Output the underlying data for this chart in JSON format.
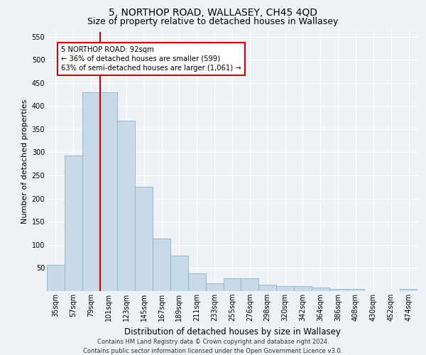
{
  "title": "5, NORTHOP ROAD, WALLASEY, CH45 4QD",
  "subtitle": "Size of property relative to detached houses in Wallasey",
  "xlabel": "Distribution of detached houses by size in Wallasey",
  "ylabel": "Number of detached properties",
  "footer_line1": "Contains HM Land Registry data © Crown copyright and database right 2024.",
  "footer_line2": "Contains public sector information licensed under the Open Government Licence v3.0.",
  "bar_labels": [
    "35sqm",
    "57sqm",
    "79sqm",
    "101sqm",
    "123sqm",
    "145sqm",
    "167sqm",
    "189sqm",
    "211sqm",
    "233sqm",
    "255sqm",
    "276sqm",
    "298sqm",
    "320sqm",
    "342sqm",
    "364sqm",
    "386sqm",
    "408sqm",
    "430sqm",
    "452sqm",
    "474sqm"
  ],
  "bar_values": [
    57,
    293,
    430,
    430,
    368,
    225,
    113,
    76,
    38,
    17,
    27,
    27,
    14,
    10,
    10,
    7,
    4,
    4,
    0,
    0,
    5
  ],
  "bar_color": "#c8d9e8",
  "bar_edge_color": "#8ab4cc",
  "vline_color": "#cc0000",
  "annotation_text": "5 NORTHOP ROAD: 92sqm\n← 36% of detached houses are smaller (599)\n63% of semi-detached houses are larger (1,061) →",
  "annotation_box_color": "white",
  "annotation_box_edge": "#cc0000",
  "ylim": [
    0,
    560
  ],
  "yticks": [
    0,
    50,
    100,
    150,
    200,
    250,
    300,
    350,
    400,
    450,
    500,
    550
  ],
  "bg_color": "#eef2f7",
  "grid_color": "white",
  "title_fontsize": 10,
  "subtitle_fontsize": 9,
  "ylabel_fontsize": 8,
  "xlabel_fontsize": 8.5,
  "tick_fontsize": 7,
  "footer_fontsize": 6
}
